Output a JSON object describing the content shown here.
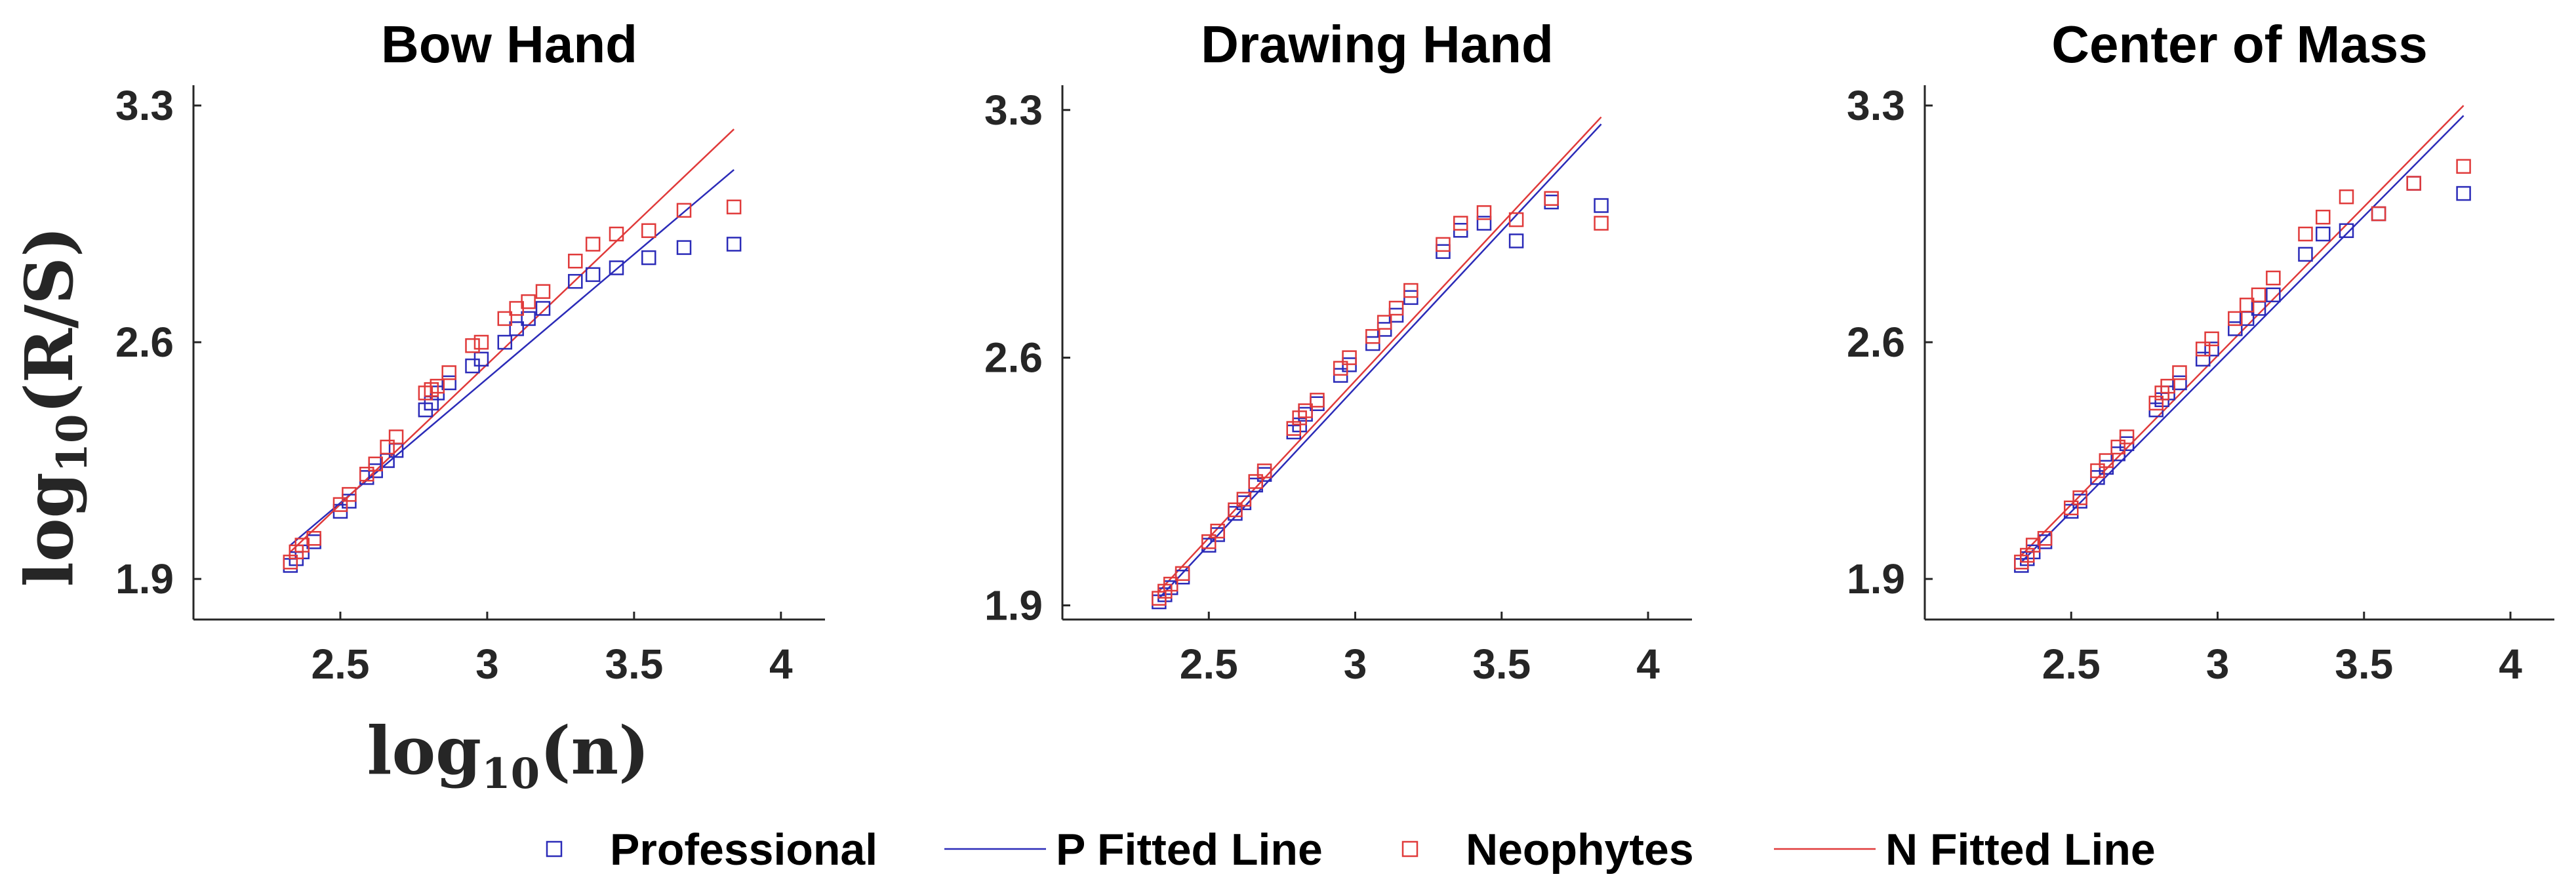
{
  "colors": {
    "professional": "#2b2bb8",
    "neophytes": "#e03a3a",
    "axis": "#262626"
  },
  "xlabel": {
    "main": "log",
    "sub": "10",
    "arg": "(n)"
  },
  "ylabel": {
    "main": "log",
    "sub": "10",
    "arg": "(R/S)"
  },
  "legend": {
    "placement": "bottom-center",
    "items": [
      {
        "label": "Professional",
        "kind": "marker",
        "color": "#2b2bb8"
      },
      {
        "label": "P Fitted Line",
        "kind": "line",
        "color": "#2b2bb8"
      },
      {
        "label": "Neophytes",
        "kind": "marker",
        "color": "#e03a3a"
      },
      {
        "label": "N Fitted Line",
        "kind": "line",
        "color": "#e03a3a"
      }
    ]
  },
  "chart_data": [
    {
      "type": "scatter",
      "title": "Bow Hand",
      "xlim": [
        2.0,
        4.15
      ],
      "ylim": [
        1.78,
        3.36
      ],
      "xticks": [
        "2.5",
        "3",
        "3.5",
        "4"
      ],
      "yticks": [
        "1.9",
        "2.6",
        "3.3"
      ],
      "x": [
        2.33,
        2.35,
        2.37,
        2.41,
        2.5,
        2.53,
        2.59,
        2.62,
        2.66,
        2.69,
        2.79,
        2.81,
        2.83,
        2.87,
        2.95,
        2.98,
        3.06,
        3.1,
        3.14,
        3.19,
        3.3,
        3.36,
        3.44,
        3.55,
        3.67,
        3.84
      ],
      "series": [
        {
          "name": "Professional",
          "values": [
            1.94,
            1.96,
            1.98,
            2.01,
            2.1,
            2.13,
            2.2,
            2.22,
            2.25,
            2.28,
            2.4,
            2.42,
            2.45,
            2.48,
            2.53,
            2.55,
            2.6,
            2.64,
            2.67,
            2.7,
            2.78,
            2.8,
            2.82,
            2.85,
            2.88,
            2.89
          ]
        },
        {
          "name": "Neophytes",
          "values": [
            1.95,
            1.98,
            2.0,
            2.02,
            2.12,
            2.15,
            2.21,
            2.24,
            2.29,
            2.32,
            2.45,
            2.46,
            2.47,
            2.51,
            2.59,
            2.6,
            2.67,
            2.7,
            2.72,
            2.75,
            2.84,
            2.89,
            2.92,
            2.93,
            2.99,
            3.0
          ]
        }
      ],
      "fits": [
        {
          "name": "P Fitted Line",
          "x": [
            2.33,
            3.84
          ],
          "y": [
            2.0,
            3.11
          ]
        },
        {
          "name": "N Fitted Line",
          "x": [
            2.33,
            3.84
          ],
          "y": [
            1.98,
            3.23
          ]
        }
      ]
    },
    {
      "type": "scatter",
      "title": "Drawing Hand",
      "xlim": [
        2.0,
        4.15
      ],
      "ylim": [
        1.86,
        3.37
      ],
      "xticks": [
        "2.5",
        "3",
        "3.5",
        "4"
      ],
      "yticks": [
        "1.9",
        "2.6",
        "3.3"
      ],
      "x": [
        2.33,
        2.35,
        2.37,
        2.41,
        2.5,
        2.53,
        2.59,
        2.62,
        2.66,
        2.69,
        2.79,
        2.81,
        2.83,
        2.87,
        2.95,
        2.98,
        3.06,
        3.1,
        3.14,
        3.19,
        3.3,
        3.36,
        3.44,
        3.55,
        3.67,
        3.84
      ],
      "series": [
        {
          "name": "Professional",
          "values": [
            1.91,
            1.93,
            1.95,
            1.98,
            2.07,
            2.1,
            2.16,
            2.19,
            2.24,
            2.27,
            2.39,
            2.41,
            2.44,
            2.47,
            2.55,
            2.58,
            2.64,
            2.68,
            2.72,
            2.77,
            2.9,
            2.96,
            2.98,
            2.93,
            3.04,
            3.03
          ]
        },
        {
          "name": "Neophytes",
          "values": [
            1.92,
            1.94,
            1.96,
            1.99,
            2.08,
            2.11,
            2.17,
            2.2,
            2.25,
            2.28,
            2.4,
            2.43,
            2.45,
            2.48,
            2.57,
            2.6,
            2.66,
            2.7,
            2.74,
            2.79,
            2.92,
            2.98,
            3.01,
            2.99,
            3.05,
            2.98
          ]
        }
      ],
      "fits": [
        {
          "name": "P Fitted Line",
          "x": [
            2.33,
            3.84
          ],
          "y": [
            1.92,
            3.26
          ]
        },
        {
          "name": "N Fitted Line",
          "x": [
            2.33,
            3.84
          ],
          "y": [
            1.94,
            3.28
          ]
        }
      ]
    },
    {
      "type": "scatter",
      "title": "Center of Mass",
      "xlim": [
        2.0,
        4.15
      ],
      "ylim": [
        1.78,
        3.36
      ],
      "xticks": [
        "2.5",
        "3",
        "3.5",
        "4"
      ],
      "yticks": [
        "1.9",
        "2.6",
        "3.3"
      ],
      "x": [
        2.33,
        2.35,
        2.37,
        2.41,
        2.5,
        2.53,
        2.59,
        2.62,
        2.66,
        2.69,
        2.79,
        2.81,
        2.83,
        2.87,
        2.95,
        2.98,
        3.06,
        3.1,
        3.14,
        3.19,
        3.3,
        3.36,
        3.44,
        3.55,
        3.67,
        3.84
      ],
      "series": [
        {
          "name": "Professional",
          "values": [
            1.94,
            1.96,
            1.98,
            2.01,
            2.1,
            2.13,
            2.2,
            2.23,
            2.27,
            2.3,
            2.4,
            2.43,
            2.45,
            2.48,
            2.55,
            2.58,
            2.64,
            2.67,
            2.7,
            2.74,
            2.86,
            2.92,
            2.93,
            2.98,
            3.07,
            3.04
          ]
        },
        {
          "name": "Neophytes",
          "values": [
            1.95,
            1.97,
            2.0,
            2.02,
            2.11,
            2.14,
            2.22,
            2.25,
            2.29,
            2.32,
            2.42,
            2.45,
            2.47,
            2.51,
            2.58,
            2.61,
            2.67,
            2.71,
            2.74,
            2.79,
            2.92,
            2.97,
            3.03,
            2.98,
            3.07,
            3.12
          ]
        }
      ],
      "fits": [
        {
          "name": "P Fitted Line",
          "x": [
            2.33,
            3.84
          ],
          "y": [
            1.95,
            3.27
          ]
        },
        {
          "name": "N Fitted Line",
          "x": [
            2.33,
            3.84
          ],
          "y": [
            1.97,
            3.3
          ]
        }
      ]
    }
  ]
}
